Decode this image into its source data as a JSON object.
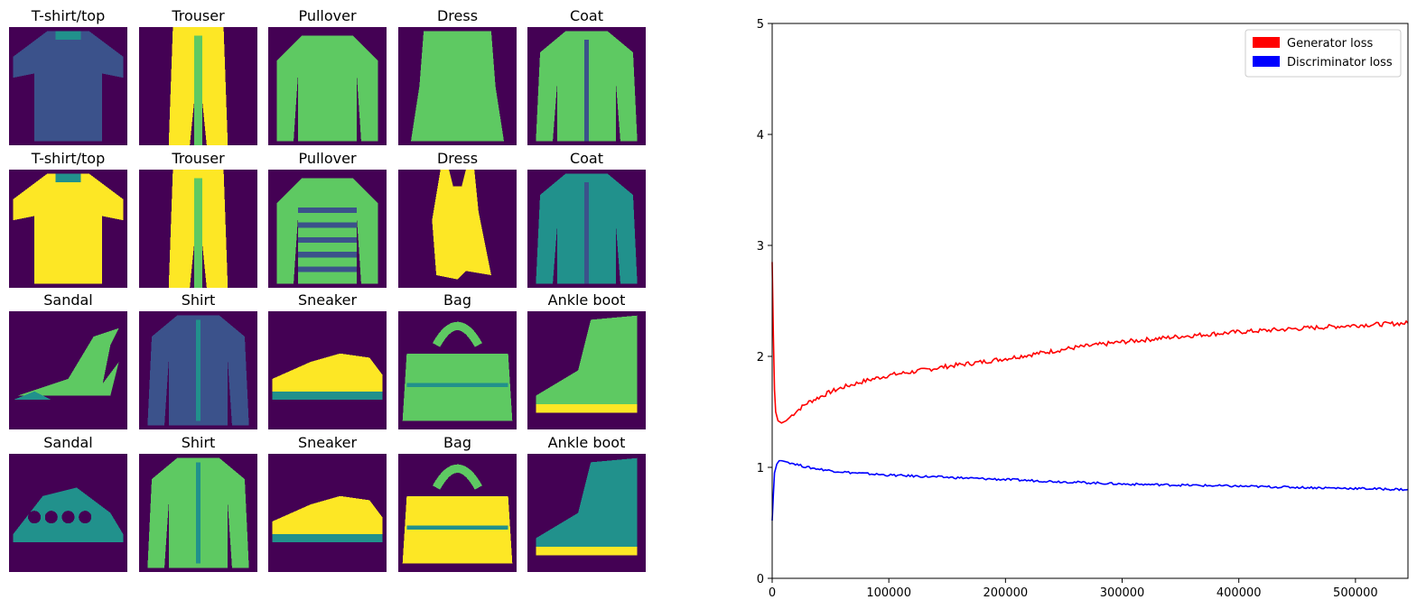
{
  "grid": {
    "rows": [
      [
        "T-shirt/top",
        "Trouser",
        "Pullover",
        "Dress",
        "Coat"
      ],
      [
        "T-shirt/top",
        "Trouser",
        "Pullover",
        "Dress",
        "Coat"
      ],
      [
        "Sandal",
        "Shirt",
        "Sneaker",
        "Bag",
        "Ankle boot"
      ],
      [
        "Sandal",
        "Shirt",
        "Sneaker",
        "Bag",
        "Ankle boot"
      ]
    ],
    "colors": {
      "background": "#440154",
      "dark": "#3b528b",
      "mid": "#21918c",
      "light": "#5ec962",
      "bright": "#fde725"
    }
  },
  "chart_data": {
    "type": "line",
    "title": "",
    "xlabel": "",
    "ylabel": "",
    "xlim": [
      0,
      545000
    ],
    "ylim": [
      0,
      5
    ],
    "xticks": [
      0,
      100000,
      200000,
      300000,
      400000,
      500000
    ],
    "yticks": [
      0,
      1,
      2,
      3,
      4,
      5
    ],
    "grid": false,
    "legend_position": "top-right",
    "series": [
      {
        "name": "Generator loss",
        "color": "#ff0000",
        "x": [
          0,
          1000,
          2000,
          3000,
          5000,
          8000,
          12000,
          20000,
          30000,
          40000,
          50000,
          60000,
          80000,
          100000,
          120000,
          150000,
          180000,
          200000,
          230000,
          260000,
          300000,
          350000,
          400000,
          450000,
          500000,
          545000
        ],
        "y": [
          2.85,
          2.2,
          1.7,
          1.5,
          1.42,
          1.4,
          1.42,
          1.5,
          1.58,
          1.63,
          1.68,
          1.72,
          1.78,
          1.83,
          1.86,
          1.91,
          1.95,
          1.98,
          2.03,
          2.08,
          2.13,
          2.18,
          2.22,
          2.25,
          2.28,
          2.3
        ]
      },
      {
        "name": "Discriminator loss",
        "color": "#0000ff",
        "x": [
          0,
          1000,
          2000,
          4000,
          6000,
          8000,
          12000,
          20000,
          30000,
          50000,
          70000,
          100000,
          150000,
          200000,
          250000,
          300000,
          350000,
          400000,
          450000,
          500000,
          545000
        ],
        "y": [
          0.52,
          0.75,
          0.95,
          1.03,
          1.06,
          1.06,
          1.05,
          1.03,
          1.0,
          0.97,
          0.95,
          0.93,
          0.91,
          0.89,
          0.87,
          0.85,
          0.84,
          0.83,
          0.82,
          0.81,
          0.8
        ]
      }
    ]
  }
}
